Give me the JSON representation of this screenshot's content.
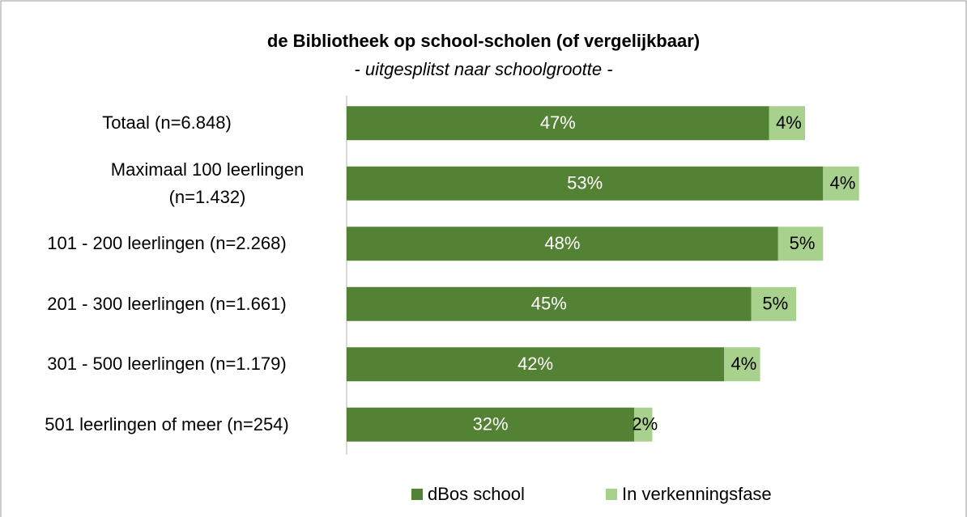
{
  "chart_data": {
    "type": "stacked-bar-horizontal",
    "title": "de Bibliotheek op school-scholen (of vergelijkbaar)",
    "subtitle": "- uitgesplitst naar schoolgrootte -",
    "categories": [
      "Totaal (n=6.848)",
      "Maximaal 100 leerlingen (n=1.432)",
      "101 - 200 leerlingen (n=2.268)",
      "201 - 300 leerlingen (n=1.661)",
      "301 - 500 leerlingen (n=1.179)",
      "501 leerlingen of meer (n=254)"
    ],
    "series": [
      {
        "name": "dBos school",
        "color": "#548235",
        "values": [
          47,
          53,
          48,
          45,
          42,
          32
        ],
        "value_labels": [
          "47%",
          "53%",
          "48%",
          "45%",
          "42%",
          "32%"
        ]
      },
      {
        "name": "In verkenningsfase",
        "color": "#a9d18e",
        "values": [
          4,
          4,
          5,
          5,
          4,
          2
        ],
        "value_labels": [
          "4%",
          "4%",
          "5%",
          "5%",
          "4%",
          "2%"
        ]
      }
    ],
    "xlim": [
      0,
      100
    ]
  }
}
